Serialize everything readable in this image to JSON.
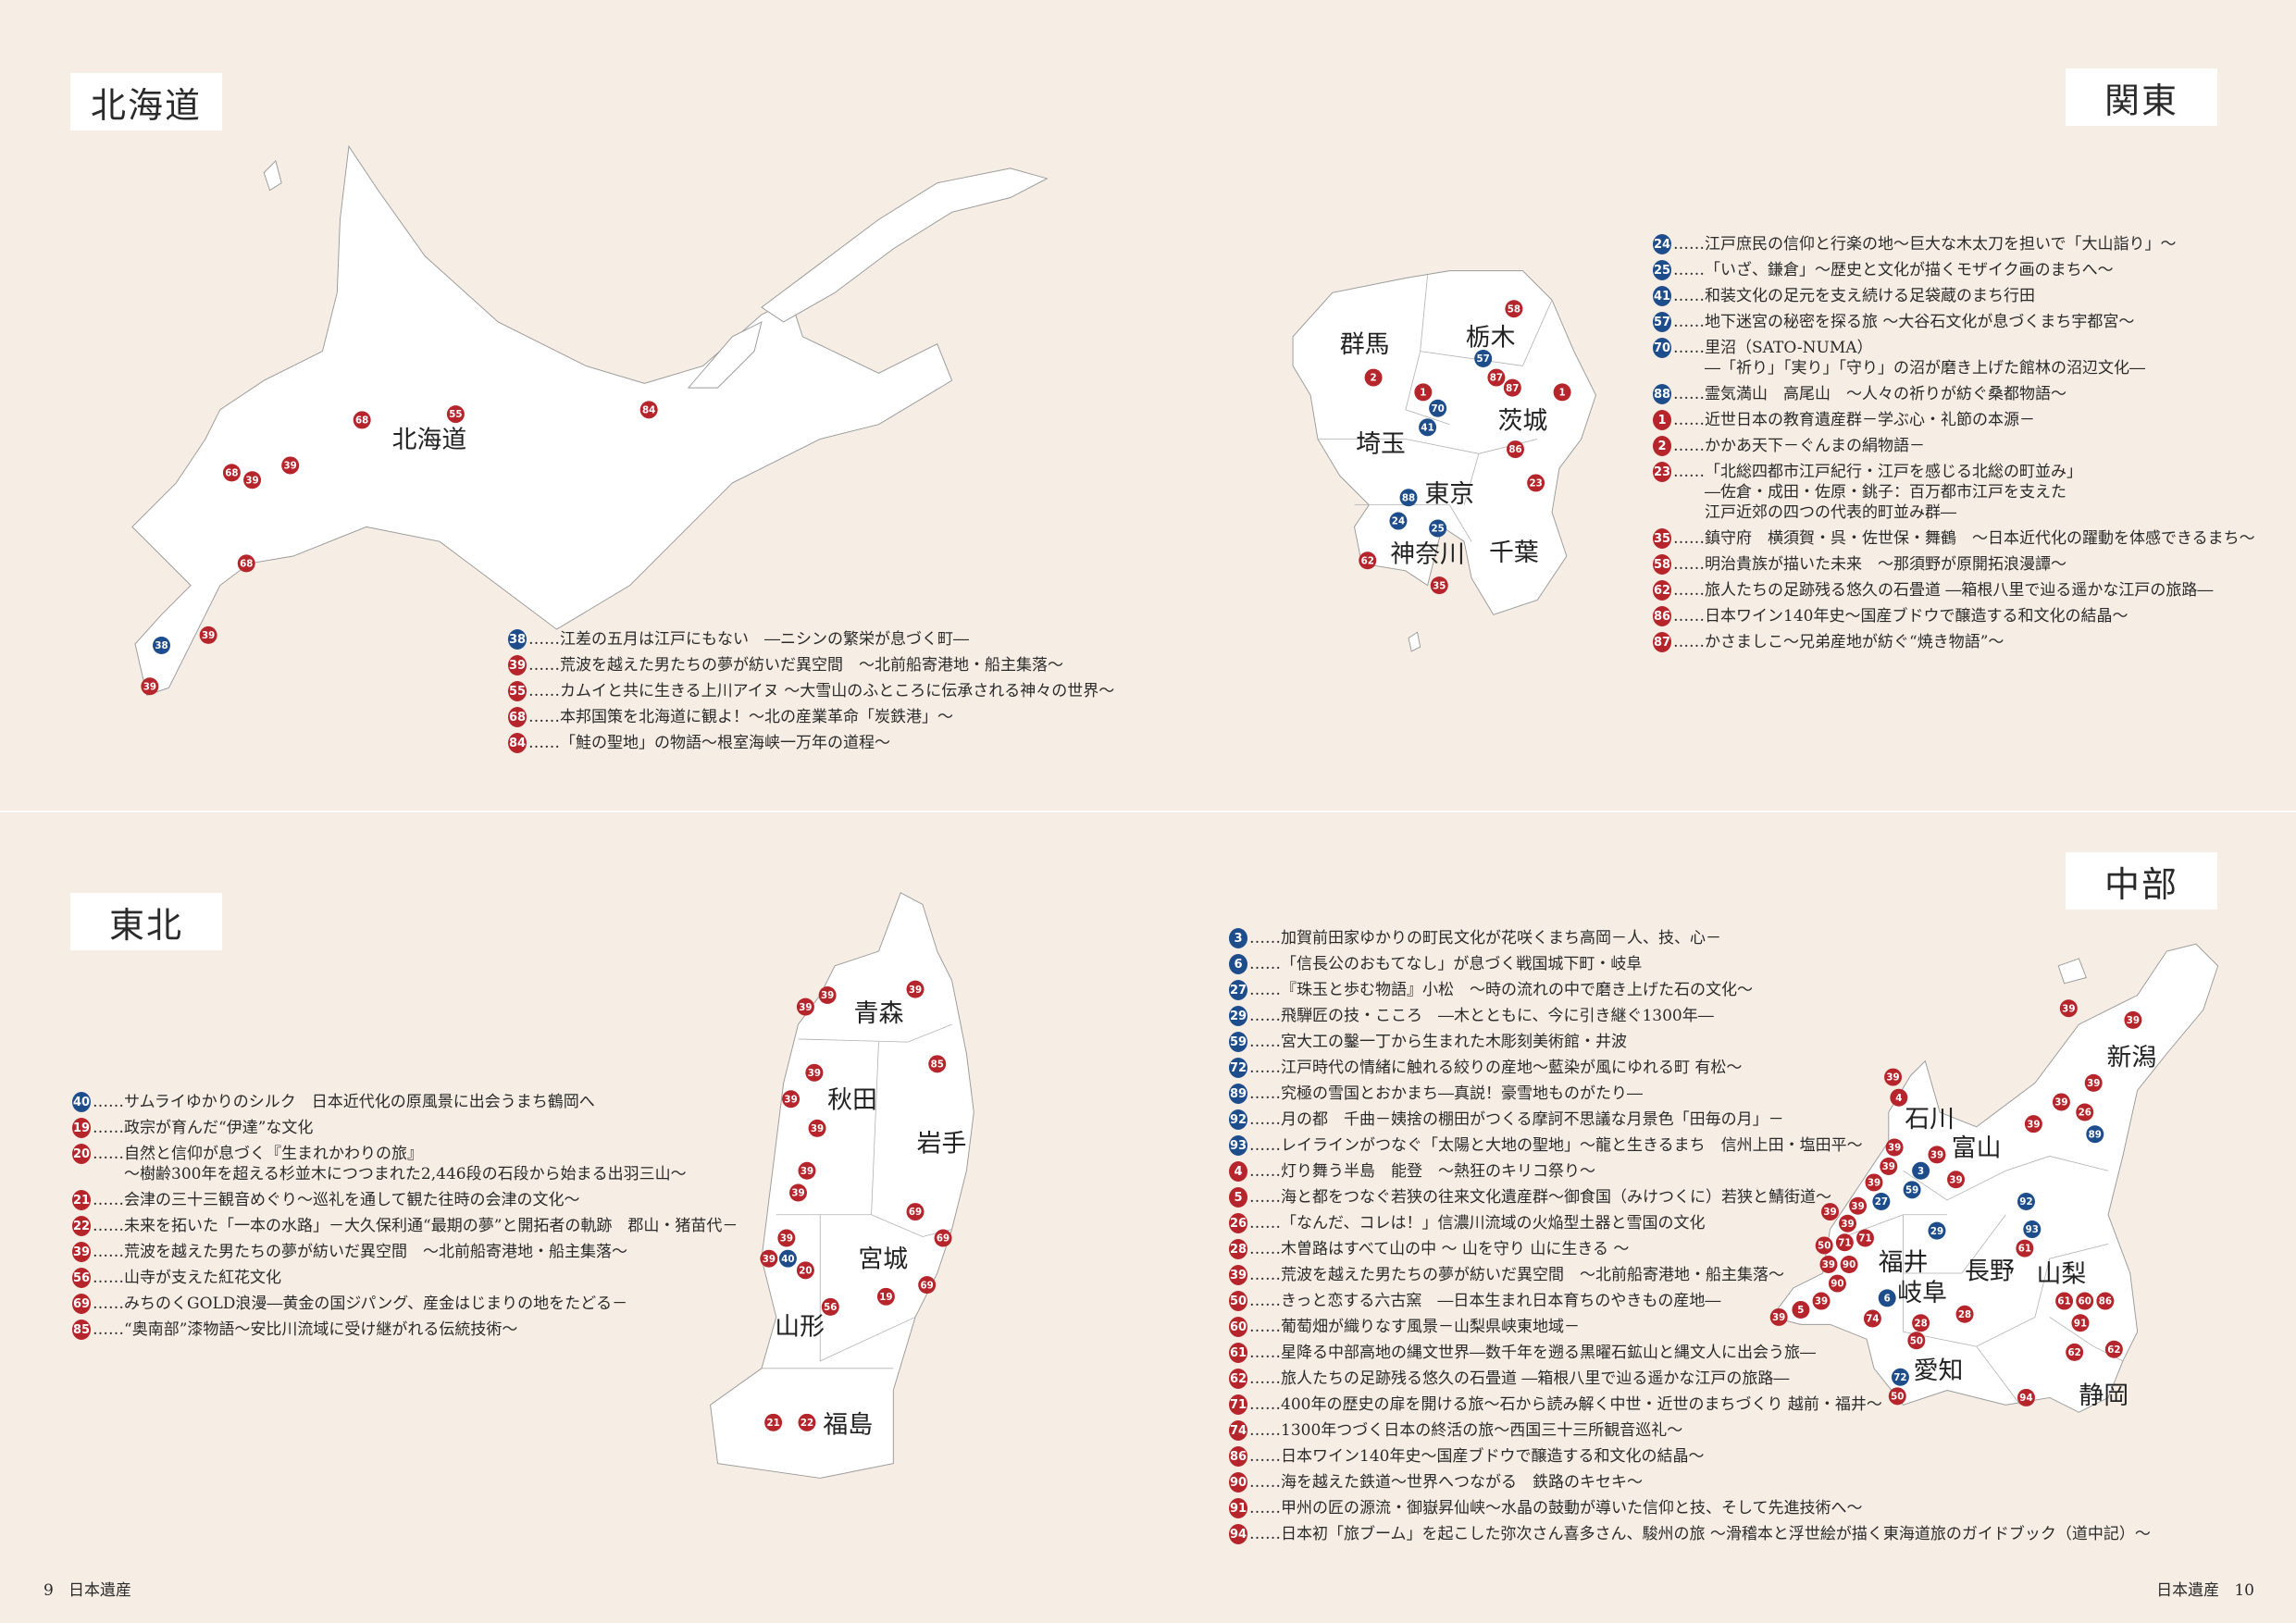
{
  "colors": {
    "background": "#f6ede4",
    "red": "#b5252b",
    "blue": "#1e4d8c"
  },
  "regions": {
    "hokkaido": {
      "title": "北海道",
      "prefectures": [
        "北海道"
      ],
      "markers": [
        {
          "n": "55",
          "c": "red"
        },
        {
          "n": "68",
          "c": "red"
        },
        {
          "n": "84",
          "c": "red"
        },
        {
          "n": "68",
          "c": "red"
        },
        {
          "n": "39",
          "c": "red"
        },
        {
          "n": "39",
          "c": "red"
        },
        {
          "n": "68",
          "c": "red"
        },
        {
          "n": "38",
          "c": "blue"
        },
        {
          "n": "39",
          "c": "red"
        },
        {
          "n": "39",
          "c": "red"
        }
      ],
      "items": [
        {
          "n": "38",
          "c": "blue",
          "text": "……江差の五月は江戸にもない　―ニシンの繁栄が息づく町―"
        },
        {
          "n": "39",
          "c": "red",
          "text": "……荒波を越えた男たちの夢が紡いだ異空間　～北前船寄港地・船主集落～"
        },
        {
          "n": "55",
          "c": "red",
          "text": "……カムイと共に生きる上川アイヌ ～大雪山のふところに伝承される神々の世界～"
        },
        {
          "n": "68",
          "c": "red",
          "text": "……本邦国策を北海道に観よ！～北の産業革命「炭鉄港」～"
        },
        {
          "n": "84",
          "c": "red",
          "text": "……「鮭の聖地」の物語～根室海峡一万年の道程～"
        }
      ]
    },
    "kanto": {
      "title": "関東",
      "prefectures": [
        "群馬",
        "栃木",
        "茨城",
        "埼玉",
        "東京",
        "神奈川",
        "千葉"
      ],
      "markers": [
        {
          "n": "58",
          "c": "red"
        },
        {
          "n": "57",
          "c": "blue"
        },
        {
          "n": "2",
          "c": "red"
        },
        {
          "n": "87",
          "c": "red"
        },
        {
          "n": "1",
          "c": "red"
        },
        {
          "n": "70",
          "c": "blue"
        },
        {
          "n": "87",
          "c": "red"
        },
        {
          "n": "1",
          "c": "red"
        },
        {
          "n": "41",
          "c": "blue"
        },
        {
          "n": "86",
          "c": "red"
        },
        {
          "n": "23",
          "c": "red"
        },
        {
          "n": "88",
          "c": "blue"
        },
        {
          "n": "24",
          "c": "blue"
        },
        {
          "n": "25",
          "c": "blue"
        },
        {
          "n": "62",
          "c": "red"
        },
        {
          "n": "35",
          "c": "red"
        }
      ],
      "items": [
        {
          "n": "24",
          "c": "blue",
          "text": "……江戸庶民の信仰と行楽の地～巨大な木太刀を担いで「大山詣り」～"
        },
        {
          "n": "25",
          "c": "blue",
          "text": "……「いざ、鎌倉」～歴史と文化が描くモザイク画のまちへ～"
        },
        {
          "n": "41",
          "c": "blue",
          "text": "……和装文化の足元を支え続ける足袋蔵のまち行田"
        },
        {
          "n": "57",
          "c": "blue",
          "text": "……地下迷宮の秘密を探る旅 ～大谷石文化が息づくまち宇都宮～"
        },
        {
          "n": "70",
          "c": "blue",
          "text": "……里沼（SATO-NUMA）\n　　―「祈り」「実り」「守り」の沼が磨き上げた館林の沼辺文化―"
        },
        {
          "n": "88",
          "c": "blue",
          "text": "……霊気満山　高尾山　～人々の祈りが紡ぐ桑都物語～"
        },
        {
          "n": "1",
          "c": "red",
          "text": "……近世日本の教育遺産群－学ぶ心・礼節の本源－"
        },
        {
          "n": "2",
          "c": "red",
          "text": "……かかあ天下－ぐんまの絹物語－"
        },
        {
          "n": "23",
          "c": "red",
          "text": "……「北総四都市江戸紀行・江戸を感じる北総の町並み」\n　　―佐倉・成田・佐原・銚子：百万都市江戸を支えた\n　　江戸近郊の四つの代表的町並み群―"
        },
        {
          "n": "35",
          "c": "red",
          "text": "……鎮守府　横須賀・呉・佐世保・舞鶴　～日本近代化の躍動を体感できるまち～"
        },
        {
          "n": "58",
          "c": "red",
          "text": "……明治貴族が描いた未来　～那須野が原開拓浪漫譚～"
        },
        {
          "n": "62",
          "c": "red",
          "text": "……旅人たちの足跡残る悠久の石畳道 ―箱根八里で辿る遥かな江戸の旅路―"
        },
        {
          "n": "86",
          "c": "red",
          "text": "……日本ワイン140年史～国産ブドウで醸造する和文化の結晶～"
        },
        {
          "n": "87",
          "c": "red",
          "text": "……かさましこ～兄弟産地が紡ぐ“焼き物語”～"
        }
      ]
    },
    "tohoku": {
      "title": "東北",
      "prefectures": [
        "青森",
        "秋田",
        "岩手",
        "宮城",
        "山形",
        "福島"
      ],
      "markers": [
        {
          "n": "39",
          "c": "red"
        },
        {
          "n": "39",
          "c": "red"
        },
        {
          "n": "39",
          "c": "red"
        },
        {
          "n": "85",
          "c": "red"
        },
        {
          "n": "39",
          "c": "red"
        },
        {
          "n": "39",
          "c": "red"
        },
        {
          "n": "39",
          "c": "red"
        },
        {
          "n": "39",
          "c": "red"
        },
        {
          "n": "39",
          "c": "red"
        },
        {
          "n": "69",
          "c": "red"
        },
        {
          "n": "69",
          "c": "red"
        },
        {
          "n": "39",
          "c": "red"
        },
        {
          "n": "39",
          "c": "red"
        },
        {
          "n": "40",
          "c": "blue"
        },
        {
          "n": "20",
          "c": "red"
        },
        {
          "n": "19",
          "c": "red"
        },
        {
          "n": "69",
          "c": "red"
        },
        {
          "n": "56",
          "c": "red"
        },
        {
          "n": "21",
          "c": "red"
        },
        {
          "n": "22",
          "c": "red"
        }
      ],
      "items": [
        {
          "n": "40",
          "c": "blue",
          "text": "……サムライゆかりのシルク　日本近代化の原風景に出会うまち鶴岡へ"
        },
        {
          "n": "19",
          "c": "red",
          "text": "……政宗が育んだ“伊達”な文化"
        },
        {
          "n": "20",
          "c": "red",
          "text": "……自然と信仰が息づく『生まれかわりの旅』\n　　～樹齢300年を超える杉並木につつまれた2,446段の石段から始まる出羽三山～"
        },
        {
          "n": "21",
          "c": "red",
          "text": "……会津の三十三観音めぐり～巡礼を通して観た往時の会津の文化～"
        },
        {
          "n": "22",
          "c": "red",
          "text": "……未来を拓いた「一本の水路」－大久保利通“最期の夢”と開拓者の軌跡　郡山・猪苗代－"
        },
        {
          "n": "39",
          "c": "red",
          "text": "……荒波を越えた男たちの夢が紡いだ異空間　～北前船寄港地・船主集落～"
        },
        {
          "n": "56",
          "c": "red",
          "text": "……山寺が支えた紅花文化"
        },
        {
          "n": "69",
          "c": "red",
          "text": "……みちのくGOLD浪漫―黄金の国ジパング、産金はじまりの地をたどる－"
        },
        {
          "n": "85",
          "c": "red",
          "text": "……“奥南部”漆物語～安比川流域に受け継がれる伝統技術～"
        }
      ]
    },
    "chubu": {
      "title": "中部",
      "prefectures": [
        "新潟",
        "石川",
        "富山",
        "福井",
        "長野",
        "山梨",
        "岐阜",
        "愛知",
        "静岡"
      ],
      "markers": [
        {
          "n": "39",
          "c": "red"
        },
        {
          "n": "39",
          "c": "red"
        },
        {
          "n": "39",
          "c": "red"
        },
        {
          "n": "4",
          "c": "red"
        },
        {
          "n": "39",
          "c": "red"
        },
        {
          "n": "39",
          "c": "red"
        },
        {
          "n": "26",
          "c": "red"
        },
        {
          "n": "89",
          "c": "blue"
        },
        {
          "n": "39",
          "c": "red"
        },
        {
          "n": "39",
          "c": "red"
        },
        {
          "n": "3",
          "c": "blue"
        },
        {
          "n": "39",
          "c": "red"
        },
        {
          "n": "39",
          "c": "red"
        },
        {
          "n": "39",
          "c": "red"
        },
        {
          "n": "39",
          "c": "red"
        },
        {
          "n": "59",
          "c": "blue"
        },
        {
          "n": "27",
          "c": "blue"
        },
        {
          "n": "39",
          "c": "red"
        },
        {
          "n": "92",
          "c": "blue"
        },
        {
          "n": "93",
          "c": "blue"
        },
        {
          "n": "29",
          "c": "blue"
        },
        {
          "n": "39",
          "c": "red"
        },
        {
          "n": "39",
          "c": "red"
        },
        {
          "n": "71",
          "c": "red"
        },
        {
          "n": "71",
          "c": "red"
        },
        {
          "n": "50",
          "c": "red"
        },
        {
          "n": "61",
          "c": "red"
        },
        {
          "n": "39",
          "c": "red"
        },
        {
          "n": "90",
          "c": "red"
        },
        {
          "n": "90",
          "c": "red"
        },
        {
          "n": "39",
          "c": "red"
        },
        {
          "n": "6",
          "c": "blue"
        },
        {
          "n": "28",
          "c": "red"
        },
        {
          "n": "61",
          "c": "red"
        },
        {
          "n": "60",
          "c": "red"
        },
        {
          "n": "86",
          "c": "red"
        },
        {
          "n": "5",
          "c": "red"
        },
        {
          "n": "39",
          "c": "red"
        },
        {
          "n": "74",
          "c": "red"
        },
        {
          "n": "28",
          "c": "red"
        },
        {
          "n": "91",
          "c": "red"
        },
        {
          "n": "50",
          "c": "red"
        },
        {
          "n": "62",
          "c": "red"
        },
        {
          "n": "62",
          "c": "red"
        },
        {
          "n": "72",
          "c": "blue"
        },
        {
          "n": "50",
          "c": "red"
        },
        {
          "n": "94",
          "c": "red"
        }
      ],
      "items": [
        {
          "n": "3",
          "c": "blue",
          "text": "……加賀前田家ゆかりの町民文化が花咲くまち高岡－人、技、心－"
        },
        {
          "n": "6",
          "c": "blue",
          "text": "……「信長公のおもてなし」が息づく戦国城下町・岐阜"
        },
        {
          "n": "27",
          "c": "blue",
          "text": "……『珠玉と歩む物語』小松　～時の流れの中で磨き上げた石の文化～"
        },
        {
          "n": "29",
          "c": "blue",
          "text": "……飛騨匠の技・こころ　―木とともに、今に引き継ぐ1300年―"
        },
        {
          "n": "59",
          "c": "blue",
          "text": "……宮大工の鑿一丁から生まれた木彫刻美術館・井波"
        },
        {
          "n": "72",
          "c": "blue",
          "text": "……江戸時代の情緒に触れる絞りの産地～藍染が風にゆれる町 有松～"
        },
        {
          "n": "89",
          "c": "blue",
          "text": "……究極の雪国とおかまち―真説！豪雪地ものがたり―"
        },
        {
          "n": "92",
          "c": "blue",
          "text": "……月の都　千曲－姨捨の棚田がつくる摩訶不思議な月景色「田毎の月」－"
        },
        {
          "n": "93",
          "c": "blue",
          "text": "……レイラインがつなぐ「太陽と大地の聖地」～龍と生きるまち　信州上田・塩田平～"
        },
        {
          "n": "4",
          "c": "red",
          "text": "……灯り舞う半島　能登　～熱狂のキリコ祭り～"
        },
        {
          "n": "5",
          "c": "red",
          "text": "……海と都をつなぐ若狭の往来文化遺産群～御食国（みけつくに）若狭と鯖街道～"
        },
        {
          "n": "26",
          "c": "red",
          "text": "……「なんだ、コレは！」信濃川流域の火焔型土器と雪国の文化"
        },
        {
          "n": "28",
          "c": "red",
          "text": "……木曽路はすべて山の中 ～ 山を守り 山に生きる ～"
        },
        {
          "n": "39",
          "c": "red",
          "text": "……荒波を越えた男たちの夢が紡いだ異空間　～北前船寄港地・船主集落～"
        },
        {
          "n": "50",
          "c": "red",
          "text": "……きっと恋する六古窯　―日本生まれ日本育ちのやきもの産地―"
        },
        {
          "n": "60",
          "c": "red",
          "text": "……葡萄畑が織りなす風景－山梨県峡東地域－"
        },
        {
          "n": "61",
          "c": "red",
          "text": "……星降る中部高地の縄文世界―数千年を遡る黒曜石鉱山と縄文人に出会う旅―"
        },
        {
          "n": "62",
          "c": "red",
          "text": "……旅人たちの足跡残る悠久の石畳道 ―箱根八里で辿る遥かな江戸の旅路―"
        },
        {
          "n": "71",
          "c": "red",
          "text": "……400年の歴史の扉を開ける旅～石から読み解く中世・近世のまちづくり 越前・福井～"
        },
        {
          "n": "74",
          "c": "red",
          "text": "……1300年つづく日本の終活の旅～西国三十三所観音巡礼～"
        },
        {
          "n": "86",
          "c": "red",
          "text": "……日本ワイン140年史～国産ブドウで醸造する和文化の結晶～"
        },
        {
          "n": "90",
          "c": "red",
          "text": "……海を越えた鉄道～世界へつながる　鉄路のキセキ～"
        },
        {
          "n": "91",
          "c": "red",
          "text": "……甲州の匠の源流・御嶽昇仙峡～水晶の鼓動が導いた信仰と技、そして先進技術へ～"
        },
        {
          "n": "94",
          "c": "red",
          "text": "……日本初「旅ブーム」を起こした弥次さん喜多さん、駿州の旅 ～滑稽本と浮世絵が描く東海道旅のガイドブック（道中記）～"
        }
      ]
    }
  },
  "footer": {
    "left_page": "9",
    "left_label": "日本遺産",
    "right_label": "日本遺産",
    "right_page": "10"
  }
}
